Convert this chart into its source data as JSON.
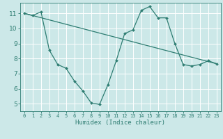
{
  "xlabel": "Humidex (Indice chaleur)",
  "bg_color": "#cce8e8",
  "grid_color": "#ffffff",
  "line_color": "#2e7d72",
  "xlim": [
    -0.5,
    23.5
  ],
  "ylim": [
    4.5,
    11.7
  ],
  "xticks": [
    0,
    1,
    2,
    3,
    4,
    5,
    6,
    7,
    8,
    9,
    10,
    11,
    12,
    13,
    14,
    15,
    16,
    17,
    18,
    19,
    20,
    21,
    22,
    23
  ],
  "yticks": [
    5,
    6,
    7,
    8,
    9,
    10,
    11
  ],
  "curve1_x": [
    0,
    1,
    2,
    3,
    4,
    5,
    6,
    7,
    8,
    9,
    10,
    11,
    12,
    13,
    14,
    15,
    16,
    17,
    18,
    19,
    20,
    21,
    22,
    23
  ],
  "curve1_y": [
    11.0,
    10.85,
    11.1,
    8.55,
    7.6,
    7.35,
    6.5,
    5.85,
    5.05,
    4.95,
    6.25,
    7.85,
    9.65,
    9.9,
    11.2,
    11.45,
    10.7,
    10.7,
    9.0,
    7.6,
    7.5,
    7.6,
    7.85,
    7.65
  ],
  "curve2_x": [
    0,
    23
  ],
  "curve2_y": [
    11.0,
    7.65
  ],
  "marker_size": 2.0,
  "linewidth": 0.9,
  "tick_fontsize": 5.5,
  "xlabel_fontsize": 6.5
}
